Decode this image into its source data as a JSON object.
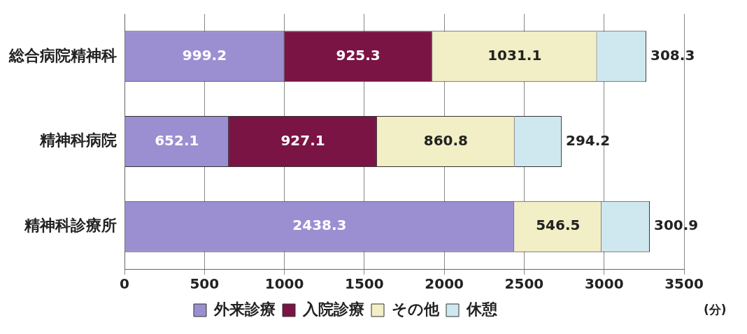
{
  "chart_data": {
    "type": "bar",
    "orientation": "horizontal",
    "stacked": true,
    "categories": [
      "総合病院精神科",
      "精神科病院",
      "精神科診療所"
    ],
    "series": [
      {
        "name": "外来診療",
        "color": "#9b8fd2",
        "values": [
          999.2,
          652.1,
          2438.3
        ]
      },
      {
        "name": "入院診療",
        "color": "#7a1444",
        "values": [
          925.3,
          927.1,
          null
        ]
      },
      {
        "name": "その他",
        "color": "#f2eec6",
        "values": [
          1031.1,
          860.8,
          546.5
        ]
      },
      {
        "name": "休憩",
        "color": "#cfe8f0",
        "values": [
          308.3,
          294.2,
          300.9
        ]
      }
    ],
    "xlim": [
      0,
      3500
    ],
    "xticks": [
      0,
      500,
      1000,
      1500,
      2000,
      2500,
      3000,
      3500
    ],
    "xlabel": "(分)",
    "grid": "x",
    "legend": "bottom",
    "data_labels": true
  }
}
